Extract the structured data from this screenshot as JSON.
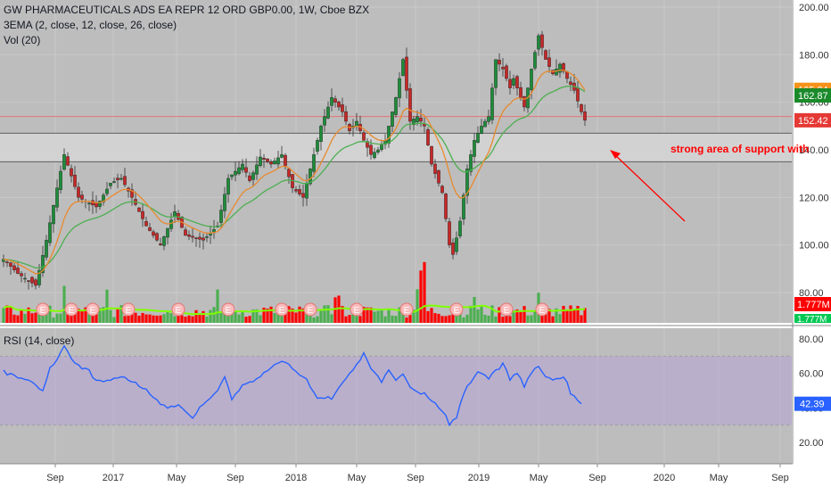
{
  "header": {
    "symbol_line": "GW PHARMACEUTICALS ADS EA REPR 12 ORD GBP0.00, 1W, Cboe BZX",
    "ema_line": "3EMA (2, close, 12, close, 26, close)",
    "vol_line": "Vol (20)",
    "rsi_line": "RSI (14, close)"
  },
  "annotation": {
    "text": "strong area of support with"
  },
  "colors": {
    "up": "#26a69a",
    "down": "#ef5350",
    "vol_up": "#4caf50",
    "vol_down": "#ff0000",
    "ema_fast": "#e88a2e",
    "ema_slow": "#4caf50",
    "rsi_line": "#2962ff",
    "rsi_band": "#b39ddb"
  },
  "chart_data": [
    {
      "type": "candlestick",
      "title": "GW PHARMACEUTICALS ADS EA REPR 12 ORD GBP0.00, 1W, Cboe BZX",
      "ylim": [
        77,
        201
      ],
      "y_ticks": [
        "200.00",
        "180.00",
        "160.00",
        "140.00",
        "120.00",
        "100.00",
        "80.00"
      ],
      "x_ticks": [
        "Sep",
        "2017",
        "May",
        "Sep",
        "2018",
        "May",
        "Sep",
        "2019",
        "May",
        "Sep",
        "2020",
        "May",
        "Sep"
      ],
      "price_labels": [
        {
          "value": 165.24,
          "text": "165.24",
          "color": "#f7931a"
        },
        {
          "value": 162.87,
          "text": "162.87",
          "color": "#1b8a2b"
        },
        {
          "value": 152.42,
          "text": "152.42",
          "color": "#e53935"
        }
      ],
      "horizontal_lines": [
        154,
        147,
        135
      ],
      "support_zone": [
        135,
        147
      ],
      "anchors": [
        [
          0,
          94
        ],
        [
          4,
          88
        ],
        [
          9,
          83
        ],
        [
          12,
          102
        ],
        [
          15,
          124
        ],
        [
          17,
          138
        ],
        [
          21,
          120
        ],
        [
          26,
          116
        ],
        [
          30,
          126
        ],
        [
          33,
          128
        ],
        [
          36,
          120
        ],
        [
          40,
          108
        ],
        [
          44,
          100
        ],
        [
          48,
          114
        ],
        [
          51,
          104
        ],
        [
          56,
          102
        ],
        [
          60,
          108
        ],
        [
          63,
          128
        ],
        [
          67,
          134
        ],
        [
          69,
          127
        ],
        [
          72,
          137
        ],
        [
          75,
          134
        ],
        [
          78,
          138
        ],
        [
          81,
          124
        ],
        [
          84,
          120
        ],
        [
          86,
          132
        ],
        [
          89,
          150
        ],
        [
          92,
          162
        ],
        [
          95,
          156
        ],
        [
          97,
          148
        ],
        [
          99,
          152
        ],
        [
          101,
          144
        ],
        [
          103,
          138
        ],
        [
          105,
          140
        ],
        [
          107,
          144
        ],
        [
          110,
          162
        ],
        [
          112,
          178
        ],
        [
          114,
          152
        ],
        [
          116,
          154
        ],
        [
          118,
          150
        ],
        [
          120,
          134
        ],
        [
          123,
          122
        ],
        [
          125,
          100
        ],
        [
          126,
          96
        ],
        [
          128,
          110
        ],
        [
          130,
          132
        ],
        [
          132,
          144
        ],
        [
          134,
          150
        ],
        [
          136,
          154
        ],
        [
          138,
          178
        ],
        [
          140,
          174
        ],
        [
          142,
          166
        ],
        [
          143,
          170
        ],
        [
          146,
          158
        ],
        [
          148,
          174
        ],
        [
          150,
          188
        ],
        [
          152,
          178
        ],
        [
          154,
          172
        ],
        [
          156,
          176
        ],
        [
          158,
          170
        ],
        [
          160,
          165
        ],
        [
          162,
          156
        ],
        [
          163,
          152.42
        ]
      ],
      "ema_fast_name": "EMA 12",
      "ema_slow_name": "EMA 26"
    },
    {
      "type": "bar",
      "title": "Vol (20)",
      "volume_labels": [
        "1.777M",
        "1.777M"
      ],
      "earnings_markers": [
        11,
        19,
        25,
        35,
        49,
        63,
        78,
        86,
        99,
        113,
        127,
        141,
        151
      ],
      "earnings_label": "E"
    },
    {
      "type": "line",
      "title": "RSI (14, close)",
      "ylim": [
        27,
        82
      ],
      "y_ticks": [
        "80.00",
        "60.00",
        "40.00",
        "20.00"
      ],
      "band": [
        30,
        70
      ],
      "last_label": "42.39",
      "anchors": [
        [
          0,
          62
        ],
        [
          4,
          58
        ],
        [
          8,
          55
        ],
        [
          11,
          50
        ],
        [
          13,
          62
        ],
        [
          15,
          68
        ],
        [
          17,
          76
        ],
        [
          20,
          66
        ],
        [
          24,
          62
        ],
        [
          26,
          56
        ],
        [
          30,
          56
        ],
        [
          33,
          58
        ],
        [
          36,
          55
        ],
        [
          40,
          50
        ],
        [
          44,
          42
        ],
        [
          50,
          40
        ],
        [
          53,
          34
        ],
        [
          56,
          42
        ],
        [
          60,
          50
        ],
        [
          62,
          58
        ],
        [
          64,
          46
        ],
        [
          68,
          54
        ],
        [
          72,
          58
        ],
        [
          76,
          65
        ],
        [
          79,
          68
        ],
        [
          82,
          60
        ],
        [
          84,
          58
        ],
        [
          86,
          52
        ],
        [
          88,
          46
        ],
        [
          92,
          45
        ],
        [
          94,
          52
        ],
        [
          98,
          62
        ],
        [
          101,
          72
        ],
        [
          103,
          63
        ],
        [
          106,
          56
        ],
        [
          108,
          62
        ],
        [
          110,
          56
        ],
        [
          112,
          60
        ],
        [
          114,
          52
        ],
        [
          117,
          48
        ],
        [
          119,
          46
        ],
        [
          121,
          42
        ],
        [
          123,
          38
        ],
        [
          125,
          30
        ],
        [
          127,
          36
        ],
        [
          129,
          48
        ],
        [
          132,
          58
        ],
        [
          134,
          60
        ],
        [
          136,
          58
        ],
        [
          138,
          62
        ],
        [
          140,
          66
        ],
        [
          142,
          58
        ],
        [
          144,
          60
        ],
        [
          146,
          52
        ],
        [
          148,
          62
        ],
        [
          150,
          64
        ],
        [
          152,
          58
        ],
        [
          154,
          57
        ],
        [
          156,
          57
        ],
        [
          158,
          55
        ],
        [
          159,
          48
        ],
        [
          160,
          46
        ],
        [
          162,
          42.39
        ]
      ]
    }
  ]
}
